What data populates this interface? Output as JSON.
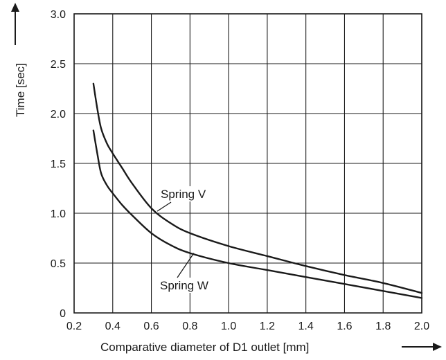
{
  "chart_data": {
    "type": "line",
    "title": "",
    "xlabel": "Comparative diameter of D1 outlet [mm]",
    "ylabel": "Time [sec]",
    "xlim": [
      0.2,
      2.0
    ],
    "ylim": [
      0,
      3.0
    ],
    "x_ticks": [
      "0.2",
      "0.4",
      "0.6",
      "0.8",
      "1.0",
      "1.2",
      "1.4",
      "1.6",
      "1.8",
      "2.0"
    ],
    "y_ticks": [
      "0",
      "0.5",
      "1.0",
      "1.5",
      "2.0",
      "2.5",
      "3.0"
    ],
    "grid": true,
    "series": [
      {
        "name": "Spring V",
        "x": [
          0.3,
          0.32,
          0.34,
          0.37,
          0.4,
          0.45,
          0.5,
          0.6,
          0.7,
          0.8,
          1.0,
          1.2,
          1.4,
          1.6,
          1.8,
          2.0
        ],
        "y": [
          2.3,
          2.05,
          1.85,
          1.7,
          1.6,
          1.45,
          1.3,
          1.05,
          0.9,
          0.8,
          0.67,
          0.57,
          0.47,
          0.38,
          0.3,
          0.2
        ]
      },
      {
        "name": "Spring W",
        "x": [
          0.3,
          0.32,
          0.34,
          0.37,
          0.4,
          0.45,
          0.5,
          0.6,
          0.7,
          0.8,
          1.0,
          1.2,
          1.4,
          1.6,
          1.8,
          2.0
        ],
        "y": [
          1.83,
          1.6,
          1.4,
          1.28,
          1.2,
          1.08,
          0.98,
          0.8,
          0.68,
          0.6,
          0.5,
          0.43,
          0.36,
          0.29,
          0.22,
          0.15
        ]
      }
    ],
    "annotations": [
      {
        "text": "Spring V",
        "series": 0
      },
      {
        "text": "Spring W",
        "series": 1
      }
    ]
  }
}
